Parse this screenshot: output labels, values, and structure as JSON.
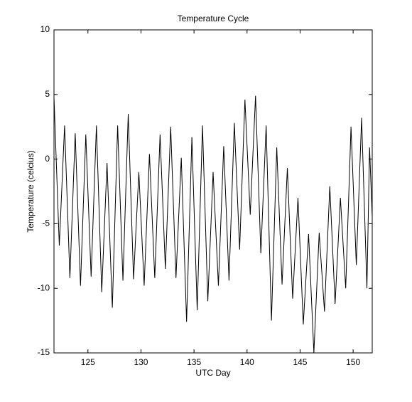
{
  "chart_data": {
    "type": "line",
    "title": "Temperature Cycle",
    "x_label": "UTC Day",
    "y_label": "Temperature (celcius)",
    "x": [
      121.8,
      122.3,
      122.8,
      123.3,
      123.8,
      124.3,
      124.8,
      125.3,
      125.8,
      126.3,
      126.8,
      127.3,
      127.8,
      128.3,
      128.8,
      129.3,
      129.8,
      130.3,
      130.8,
      131.3,
      131.8,
      132.3,
      132.8,
      133.3,
      133.8,
      134.3,
      134.8,
      135.3,
      135.8,
      136.3,
      136.8,
      137.3,
      137.8,
      138.3,
      138.8,
      139.3,
      139.8,
      140.3,
      140.8,
      141.3,
      141.8,
      142.3,
      142.8,
      143.3,
      143.8,
      144.3,
      144.8,
      145.3,
      145.8,
      146.3,
      146.8,
      147.3,
      147.8,
      148.3,
      148.8,
      149.3,
      149.8,
      150.3,
      150.8,
      151.3,
      151.55,
      151.8
    ],
    "series": [
      {
        "name": "Temperature",
        "color": "#000000",
        "values": [
          4.8,
          -6.7,
          2.6,
          -9.2,
          2.0,
          -9.8,
          1.9,
          -9.1,
          2.6,
          -10.3,
          -0.3,
          -11.5,
          2.6,
          -9.4,
          3.5,
          -9.3,
          -1.0,
          -9.8,
          0.4,
          -9.2,
          1.9,
          -8.5,
          2.5,
          -9.2,
          0.1,
          -12.6,
          1.7,
          -11.7,
          2.6,
          -11.0,
          -1.0,
          -9.8,
          1.0,
          -9.4,
          2.8,
          -7.0,
          4.6,
          -4.3,
          4.9,
          -7.3,
          2.6,
          -12.5,
          0.9,
          -9.7,
          -0.7,
          -10.8,
          -3.0,
          -12.8,
          -5.8,
          -15.0,
          -5.7,
          -11.8,
          -2.1,
          -11.2,
          -3.0,
          -10.0,
          2.5,
          -8.2,
          3.2,
          -10.0,
          0.9,
          -4.5
        ]
      }
    ],
    "xlim": [
      121.8,
      151.8
    ],
    "xticks": [
      125,
      130,
      135,
      140,
      145,
      150
    ],
    "ylim": [
      -15,
      10
    ],
    "yticks": [
      -15,
      -10,
      -5,
      0,
      5,
      10
    ],
    "grid": false
  }
}
